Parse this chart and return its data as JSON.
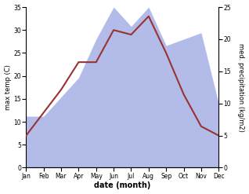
{
  "months": [
    "Jan",
    "Feb",
    "Mar",
    "Apr",
    "May",
    "Jun",
    "Jul",
    "Aug",
    "Sep",
    "Oct",
    "Nov",
    "Dec"
  ],
  "temp": [
    7,
    12,
    17,
    23,
    23,
    30,
    29,
    33,
    25,
    16,
    9,
    7
  ],
  "precip": [
    8,
    8,
    11,
    14,
    20,
    25,
    22,
    25,
    19,
    20,
    21,
    10
  ],
  "temp_color": "#993333",
  "precip_fill_color": "#b3bce8",
  "title": "",
  "xlabel": "date (month)",
  "ylabel_left": "max temp (C)",
  "ylabel_right": "med. precipitation (kg/m2)",
  "ylim_left": [
    0,
    35
  ],
  "ylim_right": [
    0,
    25
  ],
  "yticks_left": [
    0,
    5,
    10,
    15,
    20,
    25,
    30,
    35
  ],
  "yticks_right": [
    0,
    5,
    10,
    15,
    20,
    25
  ],
  "bg_color": "#ffffff",
  "temp_linewidth": 1.5
}
